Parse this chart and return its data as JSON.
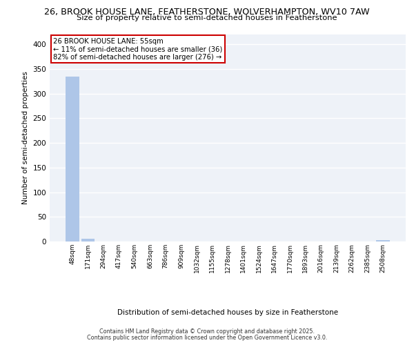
{
  "title_line1": "26, BROOK HOUSE LANE, FEATHERSTONE, WOLVERHAMPTON, WV10 7AW",
  "title_line2": "Size of property relative to semi-detached houses in Featherstone",
  "xlabel": "Distribution of semi-detached houses by size in Featherstone",
  "ylabel": "Number of semi-detached properties",
  "categories": [
    "48sqm",
    "171sqm",
    "294sqm",
    "417sqm",
    "540sqm",
    "663sqm",
    "786sqm",
    "909sqm",
    "1032sqm",
    "1155sqm",
    "1278sqm",
    "1401sqm",
    "1524sqm",
    "1647sqm",
    "1770sqm",
    "1893sqm",
    "2016sqm",
    "2139sqm",
    "2262sqm",
    "2385sqm",
    "2508sqm"
  ],
  "values": [
    335,
    5,
    0,
    0,
    0,
    0,
    0,
    0,
    0,
    0,
    0,
    0,
    0,
    0,
    0,
    0,
    0,
    0,
    0,
    0,
    3
  ],
  "bar_color": "#aec6e8",
  "annotation_text_line1": "26 BROOK HOUSE LANE: 55sqm",
  "annotation_text_line2": "← 11% of semi-detached houses are smaller (36)",
  "annotation_text_line3": "82% of semi-detached houses are larger (276) →",
  "annotation_box_color": "#cc0000",
  "annotation_fill_color": "#ffffff",
  "ylim": [
    0,
    420
  ],
  "yticks": [
    0,
    50,
    100,
    150,
    200,
    250,
    300,
    350,
    400
  ],
  "background_color": "#eef2f8",
  "grid_color": "#ffffff",
  "footer_line1": "Contains HM Land Registry data © Crown copyright and database right 2025.",
  "footer_line2": "Contains public sector information licensed under the Open Government Licence v3.0."
}
